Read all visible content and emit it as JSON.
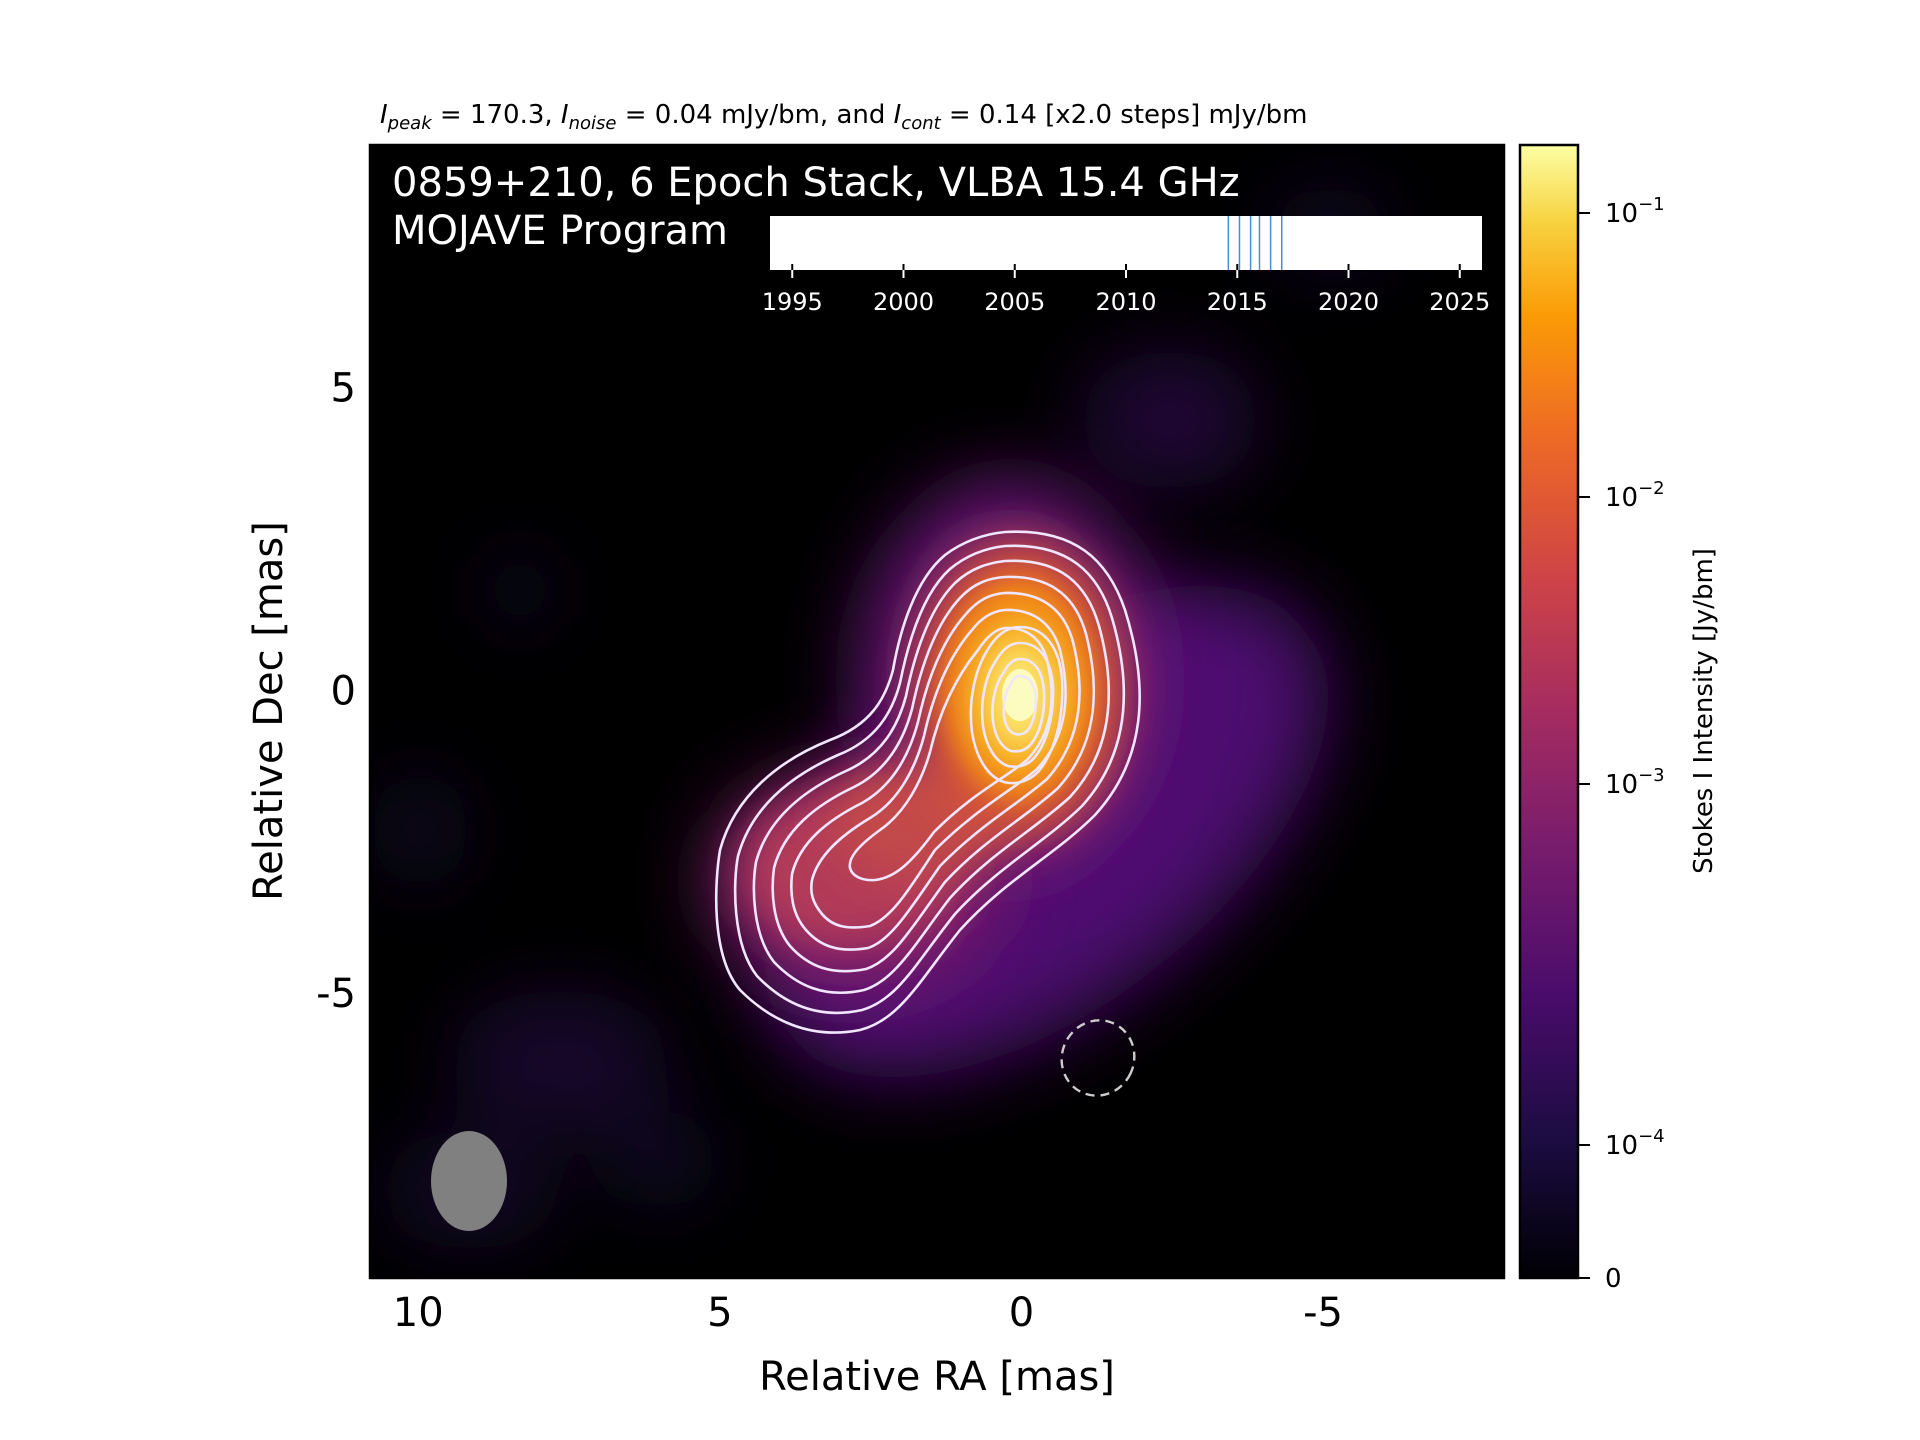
{
  "header": {
    "peak_label": "I",
    "peak_sub": "peak",
    "peak_text": " = 170.3, ",
    "noise_label": "I",
    "noise_sub": "noise",
    "noise_text": " = 0.04 mJy/bm, and ",
    "cont_label": "I",
    "cont_sub": "cont",
    "cont_text": " = 0.14 [x2.0 steps] mJy/bm"
  },
  "overlay": {
    "line1": "0859+210, 6 Epoch Stack, VLBA 15.4 GHz",
    "line2": "MOJAVE Program"
  },
  "colors": {
    "background": "#000000",
    "contour": "#f0e6ff",
    "beam": "#808080",
    "epoch_line": "#4a8fd4"
  },
  "chart_data": {
    "type": "heatmap",
    "xlabel": "Relative RA [mas]",
    "ylabel": "Relative Dec [mas]",
    "xlim": [
      10.8,
      -8.0
    ],
    "ylim": [
      -9.7,
      9.0
    ],
    "x_ticks": [
      10,
      5,
      0,
      -5
    ],
    "x_tick_labels": [
      "10",
      "5",
      "0",
      "-5"
    ],
    "y_ticks": [
      5,
      0,
      -5
    ],
    "y_tick_labels": [
      "5",
      "0",
      "-5"
    ],
    "colormap": "inferno",
    "colorbar": {
      "label": "Stokes I Intensity [Jy/bm]",
      "scale": "log",
      "ticks": [
        {
          "value": 0.1,
          "base": "10",
          "exp": "−1"
        },
        {
          "value": 0.01,
          "base": "10",
          "exp": "−2"
        },
        {
          "value": 0.001,
          "base": "10",
          "exp": "−3"
        },
        {
          "value": 0.0001,
          "base": "10",
          "exp": "−4"
        },
        {
          "value": 0,
          "base": "0",
          "exp": ""
        }
      ]
    },
    "peak_mJy_per_beam": 170.3,
    "noise_mJy_per_beam": 0.04,
    "lowest_contour_mJy_per_beam": 0.14,
    "contour_step_factor": 2.0,
    "core": {
      "ra": 0,
      "dec": 0
    },
    "jet_component": {
      "ra": 2.8,
      "dec": -3.0
    },
    "beam": {
      "ra": 9.2,
      "dec": -8.1,
      "major_mas": 1.6,
      "minor_mas": 1.2
    },
    "negative_contour": {
      "ra": -1.2,
      "dec": -6.0
    },
    "epoch_timeline": {
      "xlim": [
        1994,
        2026
      ],
      "ticks": [
        1995,
        2000,
        2005,
        2010,
        2015,
        2020,
        2025
      ],
      "tick_labels": [
        "1995",
        "2000",
        "2005",
        "2010",
        "2015",
        "2020",
        "2025"
      ],
      "epochs": [
        2014.6,
        2015.1,
        2015.6,
        2016.0,
        2016.5,
        2017.0
      ]
    }
  }
}
